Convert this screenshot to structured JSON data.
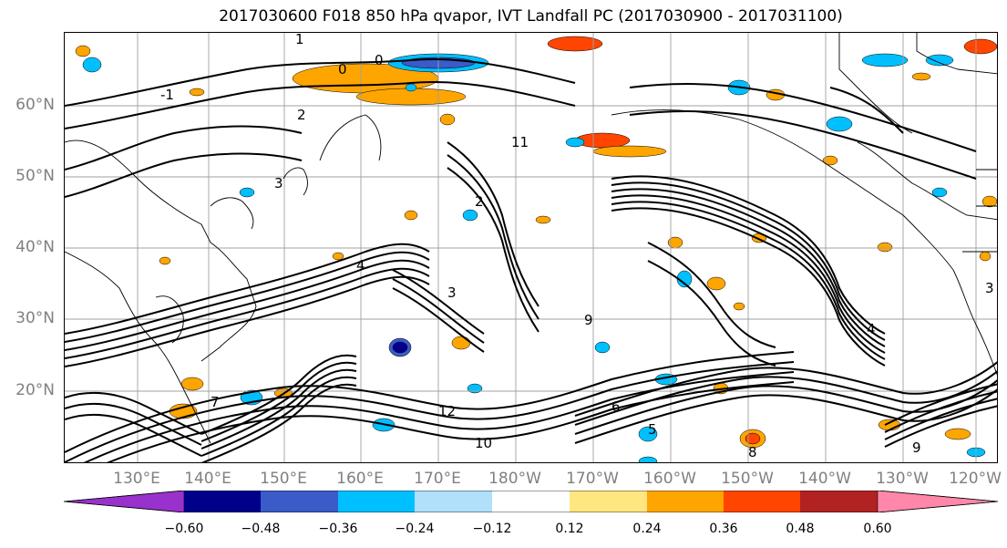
{
  "title": "2017030600 F018 850 hPa qvapor, IVT Landfall PC (2017030900 - 2017031100)",
  "map": {
    "lat_labels": [
      "60°N",
      "50°N",
      "40°N",
      "30°N",
      "20°N"
    ],
    "lon_labels": [
      "130°E",
      "140°E",
      "150°E",
      "160°E",
      "170°E",
      "180°W",
      "170°W",
      "160°W",
      "150°W",
      "140°W",
      "130°W",
      "120°W"
    ],
    "contour_color": "#000000",
    "coast_color": "#000000",
    "grid_color": "#a0a0a0",
    "contour_labels": [
      "1",
      "0",
      "2",
      "-1",
      "4",
      "3",
      "5",
      "9",
      "12",
      "10",
      "8",
      "6",
      "7",
      "11"
    ]
  },
  "colorbar": {
    "colors": [
      "#9932cc",
      "#00008b",
      "#3a5bc8",
      "#00bfff",
      "#b0e0fa",
      "#ffffff",
      "#ffe680",
      "#ffa500",
      "#ff4500",
      "#b22222",
      "#ff88aa"
    ],
    "ticks": [
      "−0.60",
      "−0.48",
      "−0.36",
      "−0.24",
      "−0.12",
      "0.12",
      "0.24",
      "0.36",
      "0.48",
      "0.60"
    ]
  }
}
